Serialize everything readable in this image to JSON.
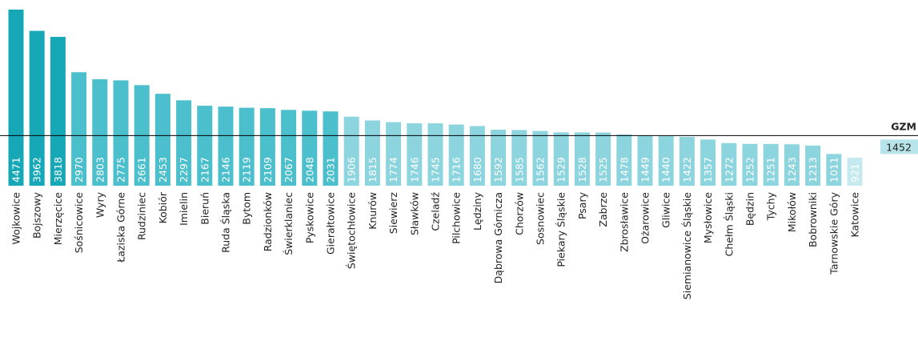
{
  "chart_data": {
    "type": "bar",
    "categories": [
      "Wojkowice",
      "Bojszowy",
      "Mierzęcice",
      "Sośnicowice",
      "Wyry",
      "Łaziska Górne",
      "Rudziniec",
      "Kobiór",
      "Imielin",
      "Bieruń",
      "Ruda Śląska",
      "Bytom",
      "Radzionków",
      "Świerklaniec",
      "Pyskowice",
      "Gierałtowice",
      "Świętochłowice",
      "Knurów",
      "Siewierz",
      "Sławków",
      "Czeladź",
      "Pilchowice",
      "Lędziny",
      "Dąbrowa Górnicza",
      "Chorzów",
      "Sosnowiec",
      "Piekary Śląskie",
      "Psary",
      "Zabrze",
      "Zbrosławice",
      "Ożarowice",
      "Gliwice",
      "Siemianowice Śląskie",
      "Mysłowice",
      "Chełm Śląski",
      "Będzin",
      "Tychy",
      "Mikołów",
      "Bobrowniki",
      "Tarnowskie Góry",
      "Katowice"
    ],
    "values": [
      4471,
      3962,
      3818,
      2970,
      2803,
      2775,
      2661,
      2453,
      2297,
      2167,
      2146,
      2119,
      2109,
      2067,
      2048,
      2031,
      1906,
      1815,
      1774,
      1746,
      1745,
      1716,
      1680,
      1592,
      1585,
      1562,
      1529,
      1528,
      1525,
      1478,
      1449,
      1440,
      1422,
      1357,
      1272,
      1252,
      1251,
      1243,
      1213,
      1011,
      921
    ],
    "colors": [
      "#17a8b8",
      "#17a8b8",
      "#17a8b8",
      "#4cbfcc",
      "#4cbfcc",
      "#4cbfcc",
      "#4cbfcc",
      "#4cbfcc",
      "#4cbfcc",
      "#4cbfcc",
      "#4cbfcc",
      "#4cbfcc",
      "#4cbfcc",
      "#4cbfcc",
      "#4cbfcc",
      "#4cbfcc",
      "#8dd5de",
      "#8dd5de",
      "#8dd5de",
      "#8dd5de",
      "#8dd5de",
      "#8dd5de",
      "#8dd5de",
      "#8dd5de",
      "#8dd5de",
      "#8dd5de",
      "#8dd5de",
      "#8dd5de",
      "#8dd5de",
      "#8dd5de",
      "#8dd5de",
      "#8dd5de",
      "#8dd5de",
      "#8dd5de",
      "#8dd5de",
      "#8dd5de",
      "#8dd5de",
      "#8dd5de",
      "#8dd5de",
      "#8dd5de",
      "#c4e9ee"
    ],
    "ylim": [
      250,
      4500
    ],
    "reference": {
      "label": "GZM",
      "value": 1452,
      "color": "#b7e3ea"
    }
  }
}
